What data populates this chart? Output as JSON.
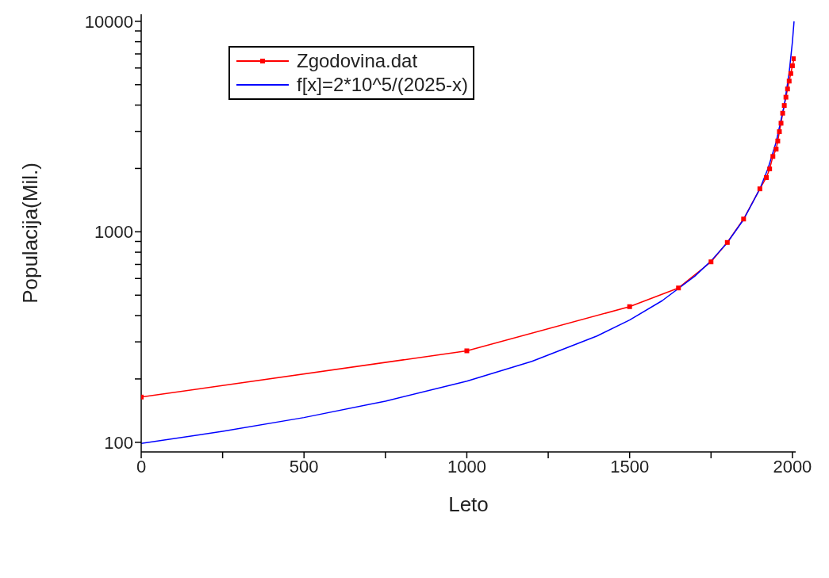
{
  "chart_data": {
    "type": "line",
    "xlabel": "Leto",
    "ylabel": "Populacija(Mil.)",
    "log": "y",
    "legend": "top left",
    "xlim": [
      0,
      2010
    ],
    "xticks": [
      0,
      {
        "value": 250,
        "label": null
      },
      500,
      {
        "value": 750,
        "label": null
      },
      1000,
      {
        "value": 1250,
        "label": null
      },
      1500,
      {
        "value": 1750,
        "label": null
      },
      2000
    ],
    "ylim": [
      90,
      10800
    ],
    "yticks": [
      100,
      {
        "value": 200,
        "label": null
      },
      {
        "value": 300,
        "label": null
      },
      {
        "value": 400,
        "label": null
      },
      {
        "value": 500,
        "label": null
      },
      {
        "value": 600,
        "label": null
      },
      {
        "value": 700,
        "label": null
      },
      {
        "value": 800,
        "label": null
      },
      {
        "value": 900,
        "label": null
      },
      1000,
      {
        "value": 2000,
        "label": null
      },
      {
        "value": 3000,
        "label": null
      },
      {
        "value": 4000,
        "label": null
      },
      {
        "value": 5000,
        "label": null
      },
      {
        "value": 6000,
        "label": null
      },
      {
        "value": 7000,
        "label": null
      },
      {
        "value": 8000,
        "label": null
      },
      {
        "value": 9000,
        "label": null
      },
      10000
    ],
    "series": [
      {
        "name": "Zgodovina.dat",
        "color": "#ff0000",
        "marker": "square",
        "x": [
          0,
          1000,
          1500,
          1650,
          1750,
          1800,
          1850,
          1900,
          1920,
          1930,
          1940,
          1950,
          1955,
          1960,
          1965,
          1970,
          1975,
          1980,
          1985,
          1990,
          1995,
          2000,
          2005
        ],
        "values": [
          164,
          272,
          441,
          541,
          720,
          890,
          1150,
          1600,
          1810,
          1990,
          2280,
          2470,
          2700,
          2990,
          3280,
          3660,
          3980,
          4360,
          4770,
          5200,
          5650,
          6150,
          6640
        ]
      },
      {
        "name": "f[x]=2*10^5/(2025-x)",
        "color": "#0000ff",
        "marker": "none",
        "x": [
          0,
          250,
          500,
          750,
          1000,
          1200,
          1400,
          1500,
          1600,
          1700,
          1750,
          1800,
          1850,
          1900,
          1925,
          1950,
          1975,
          1990,
          2000,
          2005
        ],
        "values": [
          98.8,
          112.7,
          131.1,
          156.9,
          195.1,
          242.4,
          320,
          381,
          470.6,
          615.4,
          727,
          888.9,
          1143,
          1600,
          2000,
          2667,
          4000,
          5714,
          8000,
          10000
        ]
      }
    ]
  }
}
